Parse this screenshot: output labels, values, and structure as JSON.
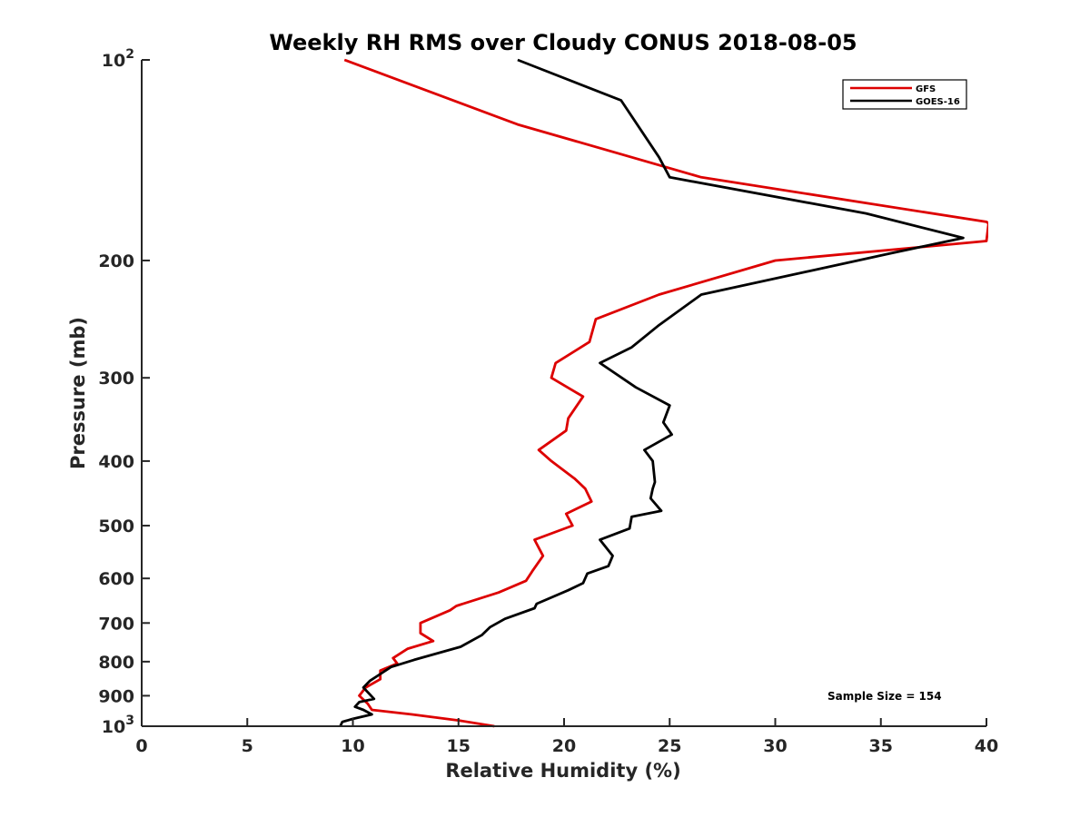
{
  "chart_data": {
    "type": "line",
    "title": "Weekly RH RMS over Cloudy CONUS 2018-08-05",
    "xlabel": "Relative Humidity (%)",
    "ylabel": "Pressure (mb)",
    "xlim": [
      0,
      40
    ],
    "ylim": [
      100,
      1000
    ],
    "yscale": "log",
    "y_reversed": true,
    "x_ticks": [
      "0",
      "5",
      "10",
      "15",
      "20",
      "25",
      "30",
      "35",
      "40"
    ],
    "y_ticks": [
      {
        "value": 100,
        "base": "10",
        "exp": "2"
      },
      {
        "value": 200,
        "label": "200"
      },
      {
        "value": 300,
        "label": "300"
      },
      {
        "value": 400,
        "label": "400"
      },
      {
        "value": 500,
        "label": "500"
      },
      {
        "value": 600,
        "label": "600"
      },
      {
        "value": 700,
        "label": "700"
      },
      {
        "value": 800,
        "label": "800"
      },
      {
        "value": 900,
        "label": "900"
      },
      {
        "value": 1000,
        "base": "10",
        "exp": "3"
      }
    ],
    "legend_position": "top-right",
    "annotation": "Sample Size = 154",
    "series": [
      {
        "name": "GFS",
        "color": "#dd0000",
        "points": [
          [
            9.6,
            100
          ],
          [
            17.8,
            125
          ],
          [
            26.5,
            150
          ],
          [
            40.0,
            175
          ],
          [
            40.1,
            176
          ],
          [
            40.0,
            187
          ],
          [
            30.0,
            200
          ],
          [
            24.5,
            225
          ],
          [
            21.5,
            245
          ],
          [
            21.2,
            265
          ],
          [
            19.6,
            285
          ],
          [
            19.4,
            300
          ],
          [
            20.9,
            320
          ],
          [
            20.2,
            345
          ],
          [
            20.1,
            360
          ],
          [
            18.8,
            385
          ],
          [
            19.4,
            400
          ],
          [
            20.5,
            425
          ],
          [
            21.0,
            440
          ],
          [
            21.3,
            460
          ],
          [
            20.1,
            480
          ],
          [
            20.4,
            500
          ],
          [
            18.6,
            525
          ],
          [
            19.0,
            555
          ],
          [
            18.5,
            585
          ],
          [
            18.2,
            605
          ],
          [
            16.9,
            630
          ],
          [
            14.9,
            660
          ],
          [
            14.6,
            670
          ],
          [
            13.2,
            700
          ],
          [
            13.2,
            725
          ],
          [
            13.8,
            745
          ],
          [
            12.6,
            765
          ],
          [
            11.9,
            790
          ],
          [
            12.1,
            805
          ],
          [
            11.3,
            825
          ],
          [
            11.3,
            850
          ],
          [
            10.6,
            875
          ],
          [
            10.3,
            900
          ],
          [
            10.7,
            925
          ],
          [
            10.9,
            945
          ],
          [
            12.8,
            960
          ],
          [
            15.0,
            980
          ],
          [
            16.7,
            1000
          ]
        ]
      },
      {
        "name": "GOES-16",
        "color": "#000000",
        "points": [
          [
            17.8,
            100
          ],
          [
            22.7,
            115
          ],
          [
            24.5,
            140
          ],
          [
            25.0,
            150
          ],
          [
            34.3,
            170
          ],
          [
            38.9,
            185
          ],
          [
            35.5,
            195
          ],
          [
            26.5,
            225
          ],
          [
            24.5,
            250
          ],
          [
            23.2,
            270
          ],
          [
            21.7,
            285
          ],
          [
            23.4,
            310
          ],
          [
            25.0,
            330
          ],
          [
            24.7,
            350
          ],
          [
            25.1,
            365
          ],
          [
            23.8,
            385
          ],
          [
            24.2,
            400
          ],
          [
            24.3,
            430
          ],
          [
            24.2,
            440
          ],
          [
            24.1,
            455
          ],
          [
            24.6,
            475
          ],
          [
            23.2,
            485
          ],
          [
            23.1,
            505
          ],
          [
            21.7,
            525
          ],
          [
            22.3,
            555
          ],
          [
            22.1,
            575
          ],
          [
            21.1,
            590
          ],
          [
            20.9,
            610
          ],
          [
            20.2,
            625
          ],
          [
            18.7,
            655
          ],
          [
            18.6,
            665
          ],
          [
            17.2,
            690
          ],
          [
            16.5,
            710
          ],
          [
            16.1,
            730
          ],
          [
            15.1,
            760
          ],
          [
            12.9,
            795
          ],
          [
            11.8,
            815
          ],
          [
            11.3,
            835
          ],
          [
            10.8,
            855
          ],
          [
            10.5,
            875
          ],
          [
            11.0,
            910
          ],
          [
            10.3,
            920
          ],
          [
            10.1,
            935
          ],
          [
            10.5,
            945
          ],
          [
            10.9,
            960
          ],
          [
            10.0,
            975
          ],
          [
            9.5,
            985
          ],
          [
            9.4,
            1000
          ]
        ]
      }
    ]
  }
}
